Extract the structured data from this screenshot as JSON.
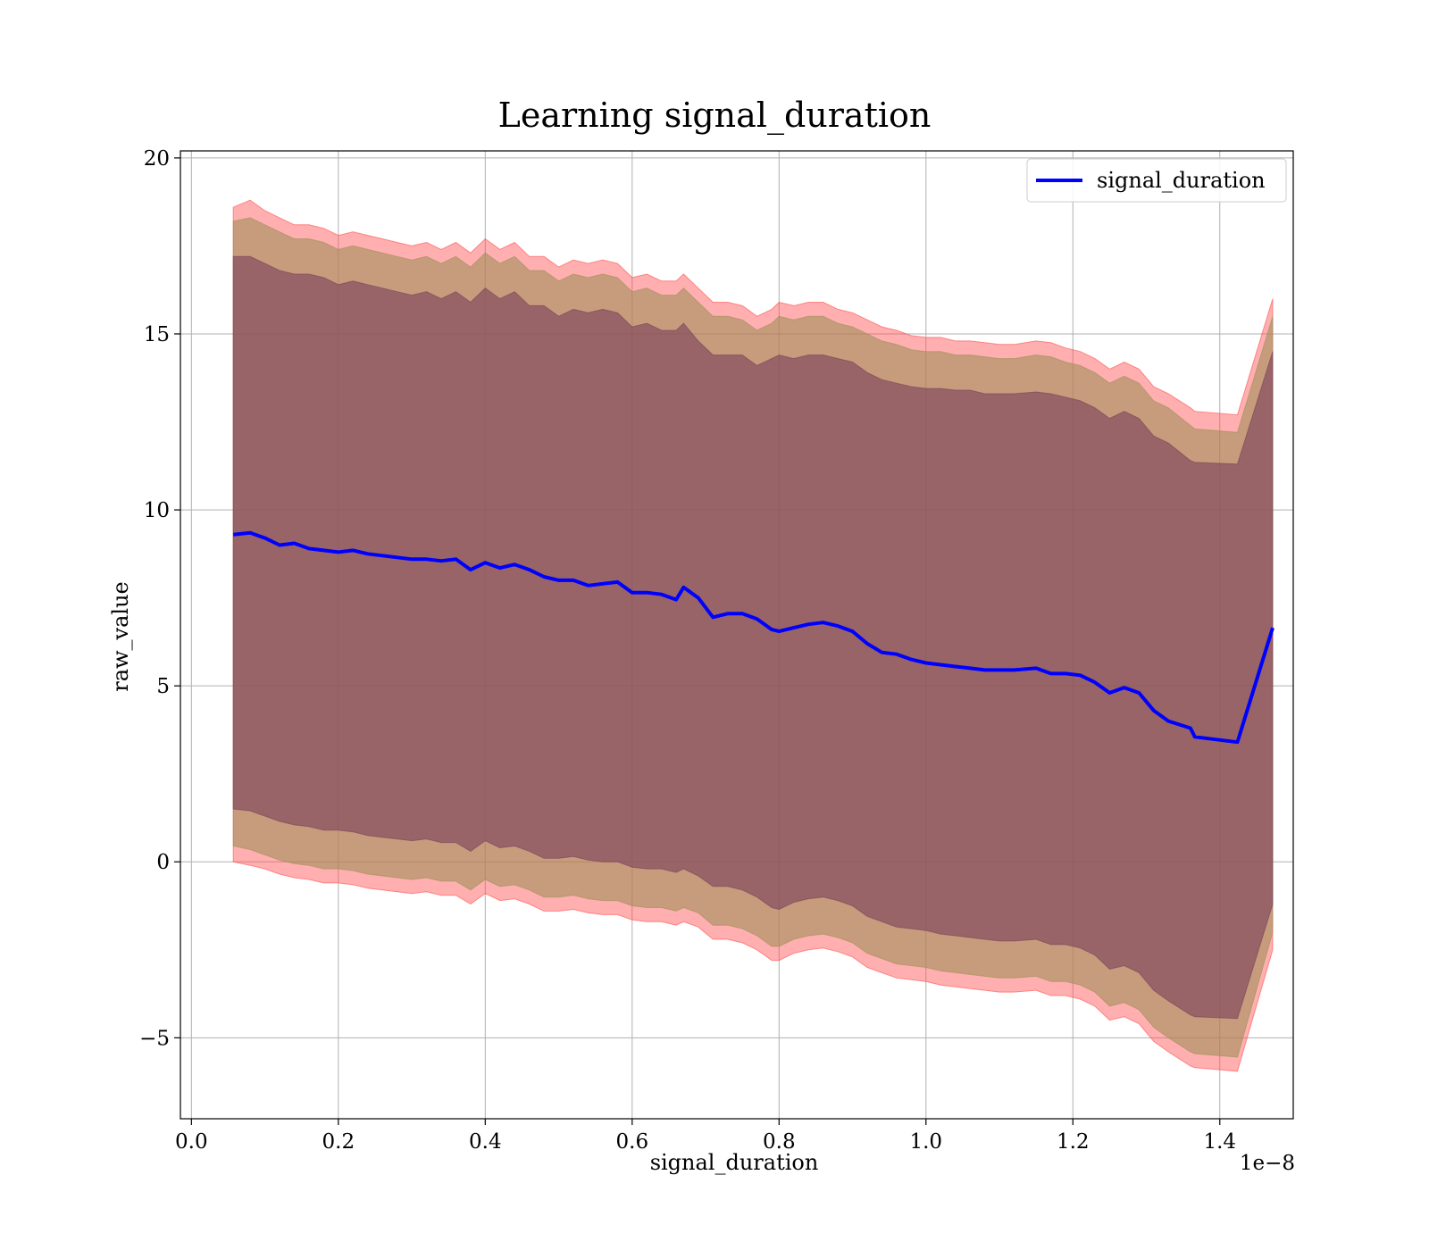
{
  "chart_data": {
    "type": "line",
    "title": "Learning signal_duration",
    "xlabel": "signal_duration",
    "ylabel": "raw_value",
    "x_offset_label": "1e−8",
    "xlim": [
      -0.015,
      1.5
    ],
    "ylim": [
      -7.3,
      20.2
    ],
    "x_ticks": [
      0.0,
      0.2,
      0.4,
      0.6,
      0.8,
      1.0,
      1.2,
      1.4
    ],
    "x_tick_labels": [
      "0.0",
      "0.2",
      "0.4",
      "0.6",
      "0.8",
      "1.0",
      "1.2",
      "1.4"
    ],
    "y_ticks": [
      -5,
      0,
      5,
      10,
      15,
      20
    ],
    "y_tick_labels": [
      "−5",
      "0",
      "5",
      "10",
      "15",
      "20"
    ],
    "grid": true,
    "legend": {
      "position": "top-right",
      "entries": [
        "signal_duration"
      ]
    },
    "x": [
      0.057,
      0.08,
      0.1,
      0.12,
      0.14,
      0.16,
      0.18,
      0.2,
      0.22,
      0.24,
      0.26,
      0.28,
      0.3,
      0.32,
      0.34,
      0.36,
      0.38,
      0.4,
      0.42,
      0.44,
      0.46,
      0.48,
      0.5,
      0.52,
      0.54,
      0.56,
      0.58,
      0.6,
      0.62,
      0.64,
      0.66,
      0.67,
      0.69,
      0.71,
      0.73,
      0.75,
      0.77,
      0.79,
      0.8,
      0.82,
      0.84,
      0.86,
      0.88,
      0.9,
      0.92,
      0.94,
      0.96,
      0.98,
      1.0,
      1.02,
      1.04,
      1.06,
      1.08,
      1.1,
      1.12,
      1.15,
      1.17,
      1.19,
      1.21,
      1.23,
      1.25,
      1.27,
      1.29,
      1.31,
      1.33,
      1.36,
      1.366,
      1.424,
      1.472
    ],
    "series": [
      {
        "name": "signal_duration",
        "color": "#0000ff",
        "values": [
          9.3,
          9.35,
          9.2,
          9.0,
          9.05,
          8.9,
          8.85,
          8.8,
          8.85,
          8.75,
          8.7,
          8.65,
          8.6,
          8.6,
          8.55,
          8.6,
          8.3,
          8.5,
          8.35,
          8.45,
          8.3,
          8.1,
          8.0,
          8.0,
          7.85,
          7.9,
          7.95,
          7.65,
          7.65,
          7.6,
          7.45,
          7.8,
          7.5,
          6.95,
          7.05,
          7.05,
          6.9,
          6.6,
          6.55,
          6.65,
          6.75,
          6.8,
          6.7,
          6.55,
          6.2,
          5.95,
          5.9,
          5.75,
          5.65,
          5.6,
          5.55,
          5.5,
          5.45,
          5.45,
          5.45,
          5.5,
          5.35,
          5.35,
          5.3,
          5.1,
          4.8,
          4.95,
          4.8,
          4.3,
          4.0,
          3.8,
          3.55,
          3.4,
          6.65
        ]
      }
    ],
    "bands": [
      {
        "color": "#ff4d4d",
        "upper": [
          18.6,
          18.8,
          18.5,
          18.3,
          18.1,
          18.1,
          18.0,
          17.8,
          17.9,
          17.8,
          17.7,
          17.6,
          17.5,
          17.6,
          17.4,
          17.6,
          17.3,
          17.7,
          17.4,
          17.6,
          17.2,
          17.2,
          16.9,
          17.1,
          17.0,
          17.1,
          17.0,
          16.6,
          16.7,
          16.5,
          16.5,
          16.7,
          16.3,
          15.9,
          15.9,
          15.8,
          15.5,
          15.7,
          15.9,
          15.8,
          15.9,
          15.9,
          15.7,
          15.6,
          15.4,
          15.2,
          15.1,
          14.95,
          14.9,
          14.9,
          14.8,
          14.8,
          14.75,
          14.7,
          14.7,
          14.8,
          14.75,
          14.6,
          14.5,
          14.3,
          14.0,
          14.2,
          14.0,
          13.5,
          13.3,
          12.9,
          12.8,
          12.7,
          16.0
        ],
        "lower": [
          0.0,
          -0.1,
          -0.2,
          -0.35,
          -0.45,
          -0.5,
          -0.6,
          -0.6,
          -0.65,
          -0.75,
          -0.8,
          -0.85,
          -0.9,
          -0.85,
          -0.95,
          -0.95,
          -1.2,
          -0.9,
          -1.1,
          -1.05,
          -1.2,
          -1.4,
          -1.4,
          -1.35,
          -1.45,
          -1.5,
          -1.5,
          -1.65,
          -1.7,
          -1.7,
          -1.8,
          -1.7,
          -1.85,
          -2.2,
          -2.2,
          -2.3,
          -2.5,
          -2.8,
          -2.8,
          -2.6,
          -2.5,
          -2.45,
          -2.55,
          -2.7,
          -3.0,
          -3.15,
          -3.3,
          -3.35,
          -3.4,
          -3.5,
          -3.55,
          -3.6,
          -3.65,
          -3.7,
          -3.7,
          -3.65,
          -3.8,
          -3.8,
          -3.9,
          -4.1,
          -4.5,
          -4.4,
          -4.6,
          -5.1,
          -5.4,
          -5.8,
          -5.85,
          -5.95,
          -2.5
        ]
      },
      {
        "color": "#a08f5a",
        "upper": [
          18.2,
          18.3,
          18.1,
          17.9,
          17.7,
          17.7,
          17.6,
          17.4,
          17.5,
          17.4,
          17.3,
          17.2,
          17.1,
          17.2,
          17.0,
          17.2,
          16.9,
          17.3,
          17.0,
          17.2,
          16.8,
          16.8,
          16.5,
          16.7,
          16.6,
          16.7,
          16.6,
          16.2,
          16.3,
          16.1,
          16.1,
          16.3,
          15.9,
          15.5,
          15.5,
          15.4,
          15.1,
          15.3,
          15.5,
          15.4,
          15.5,
          15.5,
          15.3,
          15.2,
          15.0,
          14.8,
          14.7,
          14.55,
          14.5,
          14.5,
          14.4,
          14.4,
          14.35,
          14.3,
          14.3,
          14.4,
          14.35,
          14.2,
          14.1,
          13.9,
          13.6,
          13.8,
          13.6,
          13.1,
          12.9,
          12.4,
          12.3,
          12.2,
          15.5
        ],
        "lower": [
          0.45,
          0.35,
          0.2,
          0.05,
          -0.05,
          -0.1,
          -0.2,
          -0.2,
          -0.25,
          -0.35,
          -0.4,
          -0.45,
          -0.5,
          -0.45,
          -0.55,
          -0.55,
          -0.8,
          -0.5,
          -0.7,
          -0.65,
          -0.8,
          -1.0,
          -1.0,
          -0.95,
          -1.05,
          -1.1,
          -1.1,
          -1.25,
          -1.3,
          -1.3,
          -1.4,
          -1.3,
          -1.45,
          -1.8,
          -1.8,
          -1.9,
          -2.1,
          -2.4,
          -2.4,
          -2.2,
          -2.1,
          -2.05,
          -2.15,
          -2.3,
          -2.6,
          -2.75,
          -2.9,
          -2.95,
          -3.0,
          -3.1,
          -3.15,
          -3.2,
          -3.25,
          -3.3,
          -3.3,
          -3.25,
          -3.4,
          -3.4,
          -3.5,
          -3.7,
          -4.1,
          -4.0,
          -4.2,
          -4.7,
          -5.0,
          -5.4,
          -5.45,
          -5.55,
          -2.0
        ]
      },
      {
        "color": "#7a3f5a",
        "upper": [
          17.2,
          17.2,
          17.0,
          16.8,
          16.7,
          16.7,
          16.6,
          16.4,
          16.5,
          16.4,
          16.3,
          16.2,
          16.1,
          16.2,
          16.0,
          16.2,
          15.9,
          16.3,
          16.0,
          16.2,
          15.8,
          15.8,
          15.5,
          15.7,
          15.6,
          15.7,
          15.6,
          15.2,
          15.3,
          15.1,
          15.1,
          15.3,
          14.8,
          14.4,
          14.4,
          14.4,
          14.1,
          14.3,
          14.4,
          14.3,
          14.4,
          14.4,
          14.3,
          14.2,
          13.9,
          13.7,
          13.6,
          13.5,
          13.45,
          13.45,
          13.4,
          13.4,
          13.3,
          13.3,
          13.3,
          13.35,
          13.3,
          13.2,
          13.1,
          12.9,
          12.6,
          12.8,
          12.6,
          12.1,
          11.9,
          11.4,
          11.35,
          11.3,
          14.5
        ],
        "lower": [
          1.5,
          1.45,
          1.3,
          1.15,
          1.05,
          1.0,
          0.9,
          0.9,
          0.85,
          0.75,
          0.7,
          0.65,
          0.6,
          0.65,
          0.55,
          0.55,
          0.3,
          0.6,
          0.4,
          0.45,
          0.3,
          0.1,
          0.1,
          0.15,
          0.05,
          0.0,
          0.0,
          -0.15,
          -0.2,
          -0.2,
          -0.3,
          -0.2,
          -0.4,
          -0.7,
          -0.7,
          -0.8,
          -1.0,
          -1.3,
          -1.35,
          -1.15,
          -1.05,
          -1.0,
          -1.1,
          -1.25,
          -1.55,
          -1.7,
          -1.85,
          -1.9,
          -1.95,
          -2.05,
          -2.1,
          -2.15,
          -2.2,
          -2.25,
          -2.25,
          -2.2,
          -2.35,
          -2.35,
          -2.45,
          -2.65,
          -3.05,
          -2.95,
          -3.15,
          -3.65,
          -3.95,
          -4.35,
          -4.4,
          -4.45,
          -1.2
        ]
      }
    ]
  }
}
